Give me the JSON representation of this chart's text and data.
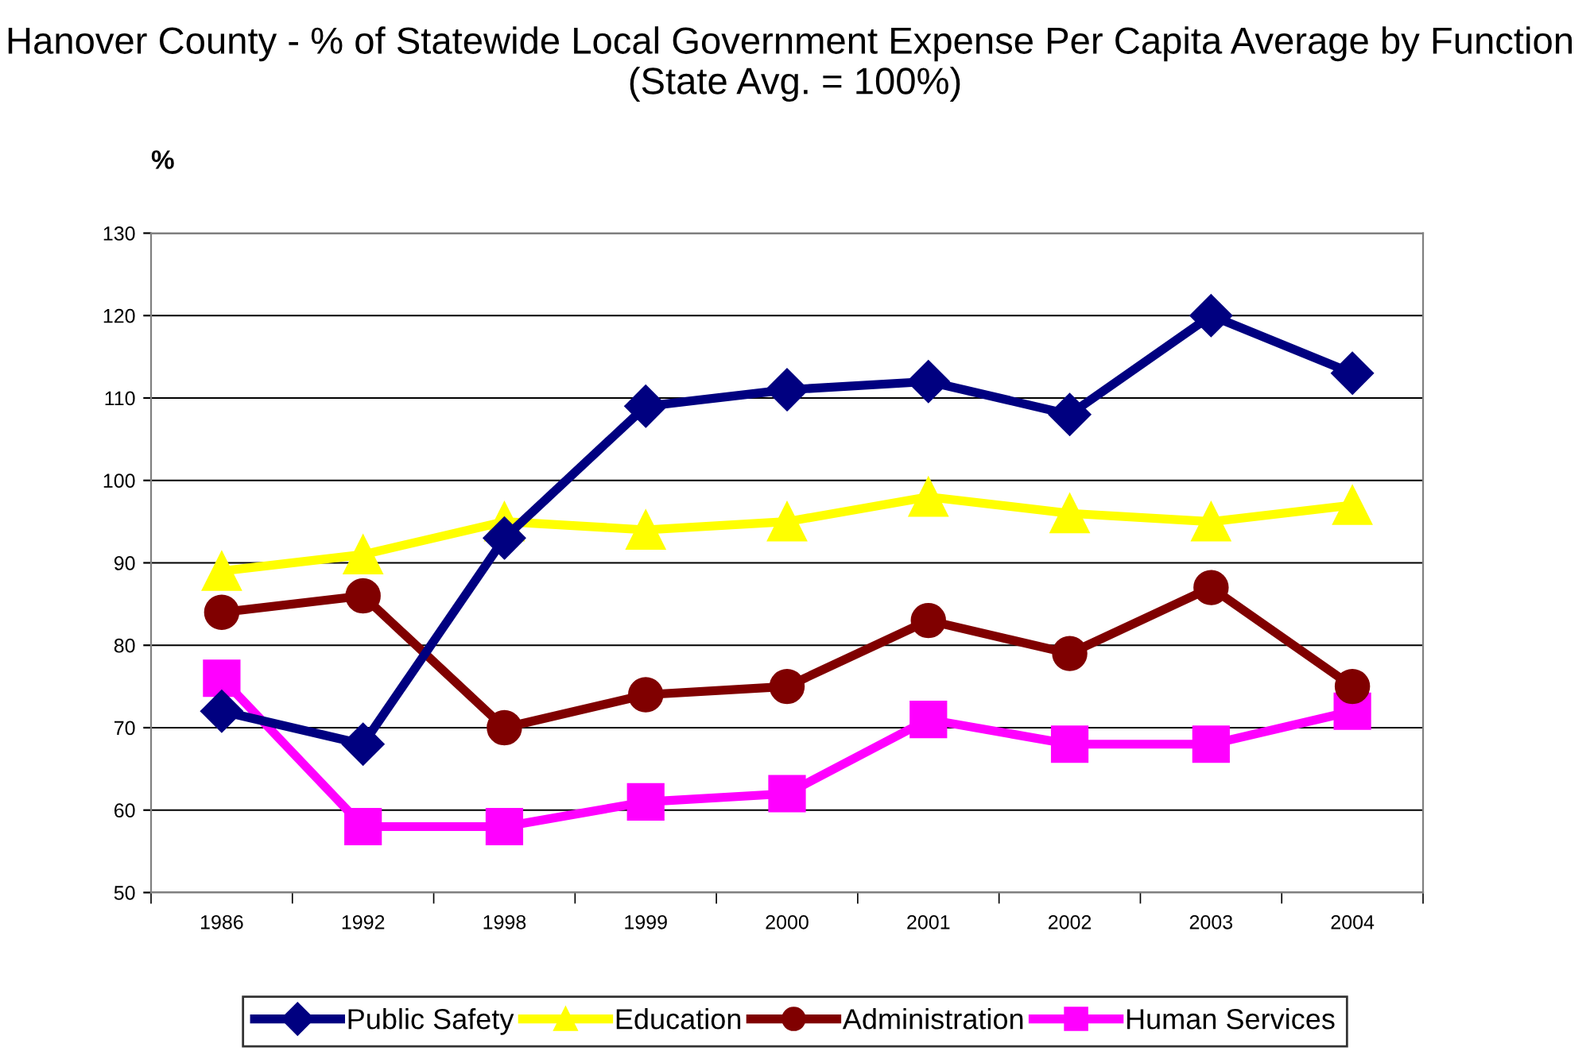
{
  "chart_data": {
    "type": "line",
    "title": "Hanover County - % of Statewide Local Government Expense Per Capita Average by Function  (State Avg. = 100%)",
    "ylabel": "%",
    "categories": [
      "1986",
      "1992",
      "1998",
      "1999",
      "2000",
      "2001",
      "2002",
      "2003",
      "2004"
    ],
    "series": [
      {
        "name": "Public Safety",
        "color": "#000080",
        "marker": "diamond",
        "values": [
          72,
          68,
          93,
          109,
          111,
          112,
          108,
          120,
          113
        ]
      },
      {
        "name": "Education",
        "color": "#ffff00",
        "marker": "triangle",
        "values": [
          89,
          91,
          95,
          94,
          95,
          98,
          96,
          95,
          97
        ]
      },
      {
        "name": "Administration",
        "color": "#800000",
        "marker": "circle",
        "values": [
          84,
          86,
          70,
          74,
          75,
          83,
          79,
          87,
          75
        ]
      },
      {
        "name": "Human Services",
        "color": "#ff00ff",
        "marker": "square",
        "values": [
          76,
          58,
          58,
          61,
          62,
          71,
          68,
          68,
          72
        ]
      }
    ],
    "ylim": [
      50,
      130
    ],
    "yticks": [
      50,
      60,
      70,
      80,
      90,
      100,
      110,
      120,
      130
    ],
    "grid": "y",
    "legend": "bottom",
    "line_style": "solid"
  }
}
